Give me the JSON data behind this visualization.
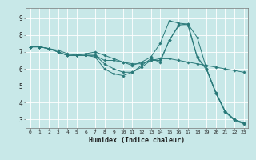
{
  "xlabel": "Humidex (Indice chaleur)",
  "bg_color": "#c8e8e8",
  "grid_color": "#ffffff",
  "line_color": "#2a7a7a",
  "xlim": [
    -0.5,
    23.5
  ],
  "ylim": [
    2.5,
    9.6
  ],
  "xticks": [
    0,
    1,
    2,
    3,
    4,
    5,
    6,
    7,
    8,
    9,
    10,
    11,
    12,
    13,
    14,
    15,
    16,
    17,
    18,
    19,
    20,
    21,
    22,
    23
  ],
  "yticks": [
    3,
    4,
    5,
    6,
    7,
    8,
    9
  ],
  "series": [
    [
      7.3,
      7.3,
      7.2,
      7.1,
      6.9,
      6.8,
      6.9,
      7.0,
      6.8,
      6.6,
      6.4,
      6.2,
      6.4,
      6.7,
      7.5,
      8.85,
      8.7,
      8.65,
      7.85,
      6.0,
      4.6,
      3.5,
      3.0,
      2.8
    ],
    [
      7.3,
      7.3,
      7.2,
      7.0,
      6.8,
      6.8,
      6.8,
      6.8,
      6.5,
      6.5,
      6.4,
      6.3,
      6.3,
      6.5,
      6.6,
      6.6,
      6.5,
      6.4,
      6.3,
      6.2,
      6.1,
      6.0,
      5.9,
      5.8
    ],
    [
      7.3,
      7.3,
      7.2,
      7.0,
      6.8,
      6.8,
      6.8,
      6.8,
      6.3,
      6.0,
      5.8,
      5.8,
      6.1,
      6.5,
      6.5,
      7.7,
      8.6,
      8.65,
      6.7,
      6.0,
      4.6,
      3.5,
      3.0,
      2.8
    ],
    [
      7.3,
      7.3,
      7.2,
      7.0,
      6.8,
      6.8,
      6.8,
      6.7,
      6.0,
      5.7,
      5.6,
      5.8,
      6.2,
      6.6,
      6.4,
      7.7,
      8.55,
      8.55,
      6.65,
      5.95,
      4.55,
      3.45,
      2.95,
      2.75
    ]
  ]
}
